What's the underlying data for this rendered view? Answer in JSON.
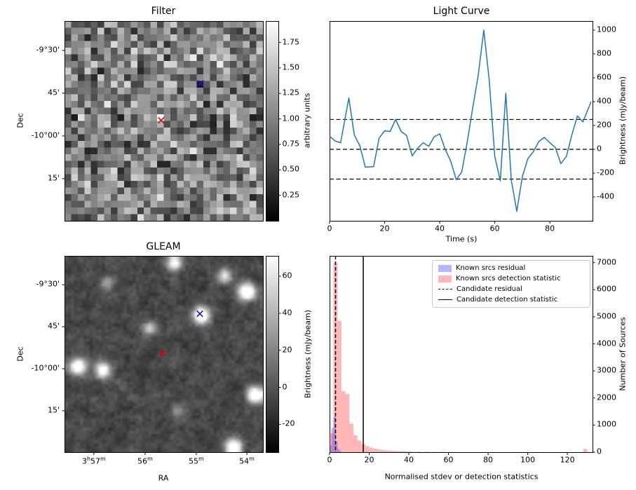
{
  "figure": {
    "background": "#ffffff"
  },
  "chart_data": [
    {
      "id": "filter",
      "type": "heatmap",
      "title": "Filter",
      "ylabel": "Dec",
      "ytick_labels": [
        "-9°30'",
        "45'",
        "-10°00'",
        "15'"
      ],
      "colorbar": {
        "label": "arbitrary units",
        "tick_labels": [
          "1.75",
          "1.50",
          "1.25",
          "1.00",
          "0.75",
          "0.50",
          "0.25"
        ],
        "tick_values": [
          1.75,
          1.5,
          1.25,
          1.0,
          0.75,
          0.5,
          0.25
        ],
        "vmin": 0.0,
        "vmax": 1.96,
        "cmap": "gray"
      },
      "image": {
        "kind": "pixelated-random-noise",
        "grid": 30,
        "seed": 11,
        "highlight_cell": {
          "col": 14,
          "row": 14
        }
      },
      "markers": [
        {
          "name": "candidate-position",
          "symbol": "x",
          "color": "#e00000",
          "fx": 0.487,
          "fy": 0.497
        },
        {
          "name": "known-source-position",
          "symbol": "x",
          "color": "#1515d0",
          "fx": 0.686,
          "fy": 0.312
        }
      ]
    },
    {
      "id": "light_curve",
      "type": "line",
      "title": "Light Curve",
      "xlabel": "Time (s)",
      "ylabel": "Brightness (mJy/beam)",
      "line_color": "#1f77b4",
      "yaxis_side": "right",
      "xlim": [
        0,
        95.5
      ],
      "ylim": [
        -600,
        1076
      ],
      "xticks": [
        0,
        20,
        40,
        60,
        80
      ],
      "yticks": [
        -400,
        -200,
        0,
        200,
        400,
        600,
        800,
        1000
      ],
      "threshold_lines": [
        250,
        0,
        -250
      ],
      "x": [
        0,
        2,
        4,
        7,
        9,
        11,
        13,
        16,
        18,
        20,
        22,
        24,
        26,
        28,
        30,
        32,
        34,
        36,
        38,
        40,
        42,
        44,
        46,
        48,
        50,
        52,
        54,
        56,
        58,
        60,
        62,
        64,
        66,
        68,
        70,
        72,
        74,
        76,
        78,
        80,
        82,
        84,
        86,
        88,
        90,
        92,
        95
      ],
      "y": [
        110,
        70,
        55,
        430,
        120,
        30,
        -150,
        -145,
        95,
        155,
        150,
        250,
        150,
        115,
        -55,
        10,
        55,
        25,
        105,
        130,
        0,
        -100,
        -255,
        -190,
        60,
        350,
        620,
        1000,
        580,
        -60,
        -265,
        470,
        -260,
        -520,
        -230,
        -80,
        -20,
        65,
        100,
        55,
        15,
        -120,
        -60,
        120,
        280,
        230,
        400
      ]
    },
    {
      "id": "gleam",
      "type": "heatmap",
      "title": "GLEAM",
      "xlabel": "RA",
      "ylabel": "Dec",
      "xtick_labels": [
        "3^h^57^m^",
        "56^m^",
        "55^m^",
        "54^m^"
      ],
      "ytick_labels": [
        "-9°30'",
        "45'",
        "-10°00'",
        "15'"
      ],
      "colorbar": {
        "label": "Brightness (mJy/beam)",
        "tick_labels": [
          "60",
          "40",
          "20",
          "0",
          "-20"
        ],
        "tick_values": [
          60,
          40,
          20,
          0,
          -20
        ],
        "vmin": -35,
        "vmax": 71,
        "cmap": "gray"
      },
      "image": {
        "kind": "smoothed-random-noise",
        "grid": 64,
        "seed": 77
      },
      "bright_sources": [
        {
          "fx": 0.682,
          "fy": 0.295,
          "amp": 1.6,
          "sigma": 1.6
        },
        {
          "fx": 0.91,
          "fy": 0.175,
          "amp": 1.5,
          "sigma": 1.7
        },
        {
          "fx": 0.8,
          "fy": 0.095,
          "amp": 1.0,
          "sigma": 1.3
        },
        {
          "fx": 0.545,
          "fy": 0.03,
          "amp": 1.2,
          "sigma": 1.4
        },
        {
          "fx": 0.06,
          "fy": 0.555,
          "amp": 1.4,
          "sigma": 1.6
        },
        {
          "fx": 0.185,
          "fy": 0.575,
          "amp": 1.3,
          "sigma": 1.5
        },
        {
          "fx": 0.95,
          "fy": 0.7,
          "amp": 1.5,
          "sigma": 1.6
        },
        {
          "fx": 0.845,
          "fy": 0.965,
          "amp": 1.4,
          "sigma": 1.6
        },
        {
          "fx": 0.42,
          "fy": 0.36,
          "amp": 0.8,
          "sigma": 1.3
        },
        {
          "fx": 0.205,
          "fy": 0.13,
          "amp": 0.6,
          "sigma": 1.2
        },
        {
          "fx": 0.56,
          "fy": 0.78,
          "amp": 0.5,
          "sigma": 1.2
        }
      ],
      "markers": [
        {
          "name": "candidate-position",
          "symbol": "x",
          "color": "#e00000",
          "fx": 0.495,
          "fy": 0.496
        },
        {
          "name": "known-source-position",
          "symbol": "x",
          "color": "#1515d0",
          "fx": 0.682,
          "fy": 0.295
        }
      ]
    },
    {
      "id": "histogram",
      "type": "bar",
      "xlabel": "Normalised stdev or detection statistics",
      "ylabel": "Number of Sources",
      "yaxis_side": "right",
      "xlim": [
        0,
        132.7
      ],
      "ylim": [
        0,
        7250
      ],
      "xticks": [
        0,
        20,
        40,
        60,
        80,
        100,
        120
      ],
      "yticks": [
        0,
        1000,
        2000,
        3000,
        4000,
        5000,
        6000,
        7000
      ],
      "series": [
        {
          "name": "Known srcs residual",
          "color": "rgba(45,45,255,0.35)",
          "bin_width": 1,
          "bin_left": [
            0,
            1,
            2,
            3,
            4,
            5
          ],
          "counts": [
            250,
            900,
            1300,
            400,
            120,
            40
          ]
        },
        {
          "name": "Known srcs detection statistic",
          "color": "rgba(255,45,45,0.35)",
          "bin_width": 2,
          "bin_left": [
            0,
            2,
            4,
            6,
            8,
            10,
            12,
            14,
            16,
            18,
            20,
            22,
            24,
            26,
            28,
            30,
            32,
            34,
            36,
            38,
            40,
            44,
            48,
            52,
            56,
            60,
            70,
            80,
            90,
            100,
            110,
            128
          ],
          "counts": [
            700,
            7000,
            4850,
            2250,
            2150,
            1050,
            620,
            430,
            300,
            220,
            170,
            130,
            100,
            80,
            65,
            55,
            45,
            40,
            35,
            30,
            25,
            20,
            15,
            12,
            10,
            8,
            6,
            5,
            4,
            3,
            2,
            120
          ]
        }
      ],
      "vlines": [
        {
          "label": "Candidate residual",
          "x": 3,
          "style": "dashed"
        },
        {
          "label": "Candidate detection statistic",
          "x": 17,
          "style": "solid"
        }
      ],
      "legend": {
        "position": "upper right",
        "entries": [
          {
            "label": "Known srcs residual",
            "swatch": "patch",
            "color": "rgba(45,45,255,0.35)"
          },
          {
            "label": "Known srcs detection statistic",
            "swatch": "patch",
            "color": "rgba(255,45,45,0.35)"
          },
          {
            "label": "Candidate residual",
            "swatch": "dashed-line"
          },
          {
            "label": "Candidate detection statistic",
            "swatch": "solid-line"
          }
        ]
      }
    }
  ]
}
